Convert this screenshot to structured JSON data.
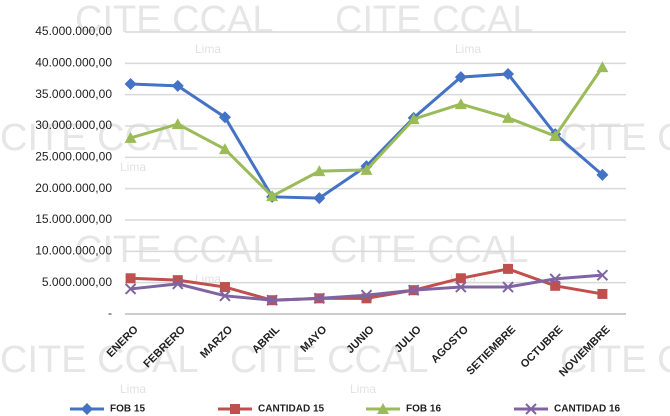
{
  "chart_data": {
    "type": "line",
    "watermark": "CITE CCAL",
    "watermark_sub": "Lima",
    "categories": [
      "ENERO",
      "FEBRERO",
      "MARZO",
      "ABRIL",
      "MAYO",
      "JUNIO",
      "JULIO",
      "AGOSTO",
      "SETIEMBRE",
      "OCTUBRE",
      "NOVIEMBRE"
    ],
    "series": [
      {
        "name": "FOB 15",
        "color": "#4472c4",
        "marker": "diamond",
        "values": [
          36700000,
          36400000,
          31400000,
          18700000,
          18500000,
          23600000,
          31300000,
          37800000,
          38300000,
          28700000,
          22200000
        ]
      },
      {
        "name": "CANTIDAD 15",
        "color": "#c0504d",
        "marker": "square",
        "values": [
          5700000,
          5400000,
          4300000,
          2200000,
          2500000,
          2500000,
          3800000,
          5700000,
          7200000,
          4500000,
          3200000
        ]
      },
      {
        "name": "FOB 16",
        "color": "#9bbb59",
        "marker": "triangle",
        "values": [
          28100000,
          30300000,
          26300000,
          18800000,
          22800000,
          23000000,
          31100000,
          33500000,
          31300000,
          28400000,
          39400000
        ]
      },
      {
        "name": "CANTIDAD 16",
        "color": "#8064a2",
        "marker": "x",
        "values": [
          4000000,
          4800000,
          2900000,
          2200000,
          2500000,
          3000000,
          3800000,
          4300000,
          4300000,
          5600000,
          6200000
        ]
      }
    ],
    "ylim": [
      0,
      45000000
    ],
    "yticks": [
      {
        "value": 0,
        "label": "-"
      },
      {
        "value": 5000000,
        "label": "5.000.000,00"
      },
      {
        "value": 10000000,
        "label": "10.000.000,00"
      },
      {
        "value": 15000000,
        "label": "15.000.000,00"
      },
      {
        "value": 20000000,
        "label": "20.000.000,00"
      },
      {
        "value": 25000000,
        "label": "25.000.000,00"
      },
      {
        "value": 30000000,
        "label": "30.000.000,00"
      },
      {
        "value": 35000000,
        "label": "35.000.000,00"
      },
      {
        "value": 40000000,
        "label": "40.000.000,00"
      },
      {
        "value": 45000000,
        "label": "45.000.000,00"
      }
    ],
    "grid": true,
    "legend": "bottom"
  }
}
